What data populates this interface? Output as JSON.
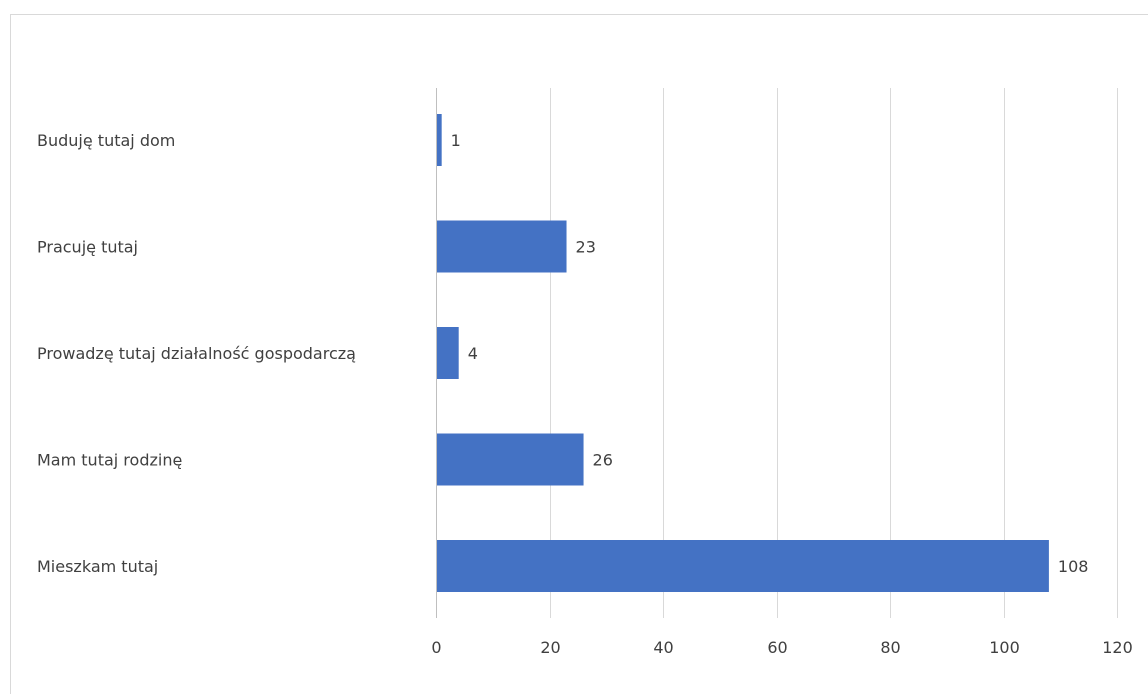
{
  "chart_data": {
    "type": "bar",
    "orientation": "horizontal",
    "categories": [
      "Buduję tutaj dom",
      "Pracuję tutaj",
      "Prowadzę tutaj działalność gospodarczą",
      "Mam tutaj rodzinę",
      "Mieszkam tutaj"
    ],
    "values": [
      1,
      23,
      4,
      26,
      108
    ],
    "data_labels": [
      "1",
      "23",
      "4",
      "26",
      "108"
    ],
    "title": "",
    "xlabel": "",
    "ylabel": "",
    "xlim": [
      0,
      120
    ],
    "x_ticks": [
      0,
      20,
      40,
      60,
      80,
      100,
      120
    ],
    "x_tick_labels": [
      "0",
      "20",
      "40",
      "60",
      "80",
      "100",
      "120"
    ],
    "grid": true,
    "legend": "none",
    "bar_color": "#4472C4"
  }
}
